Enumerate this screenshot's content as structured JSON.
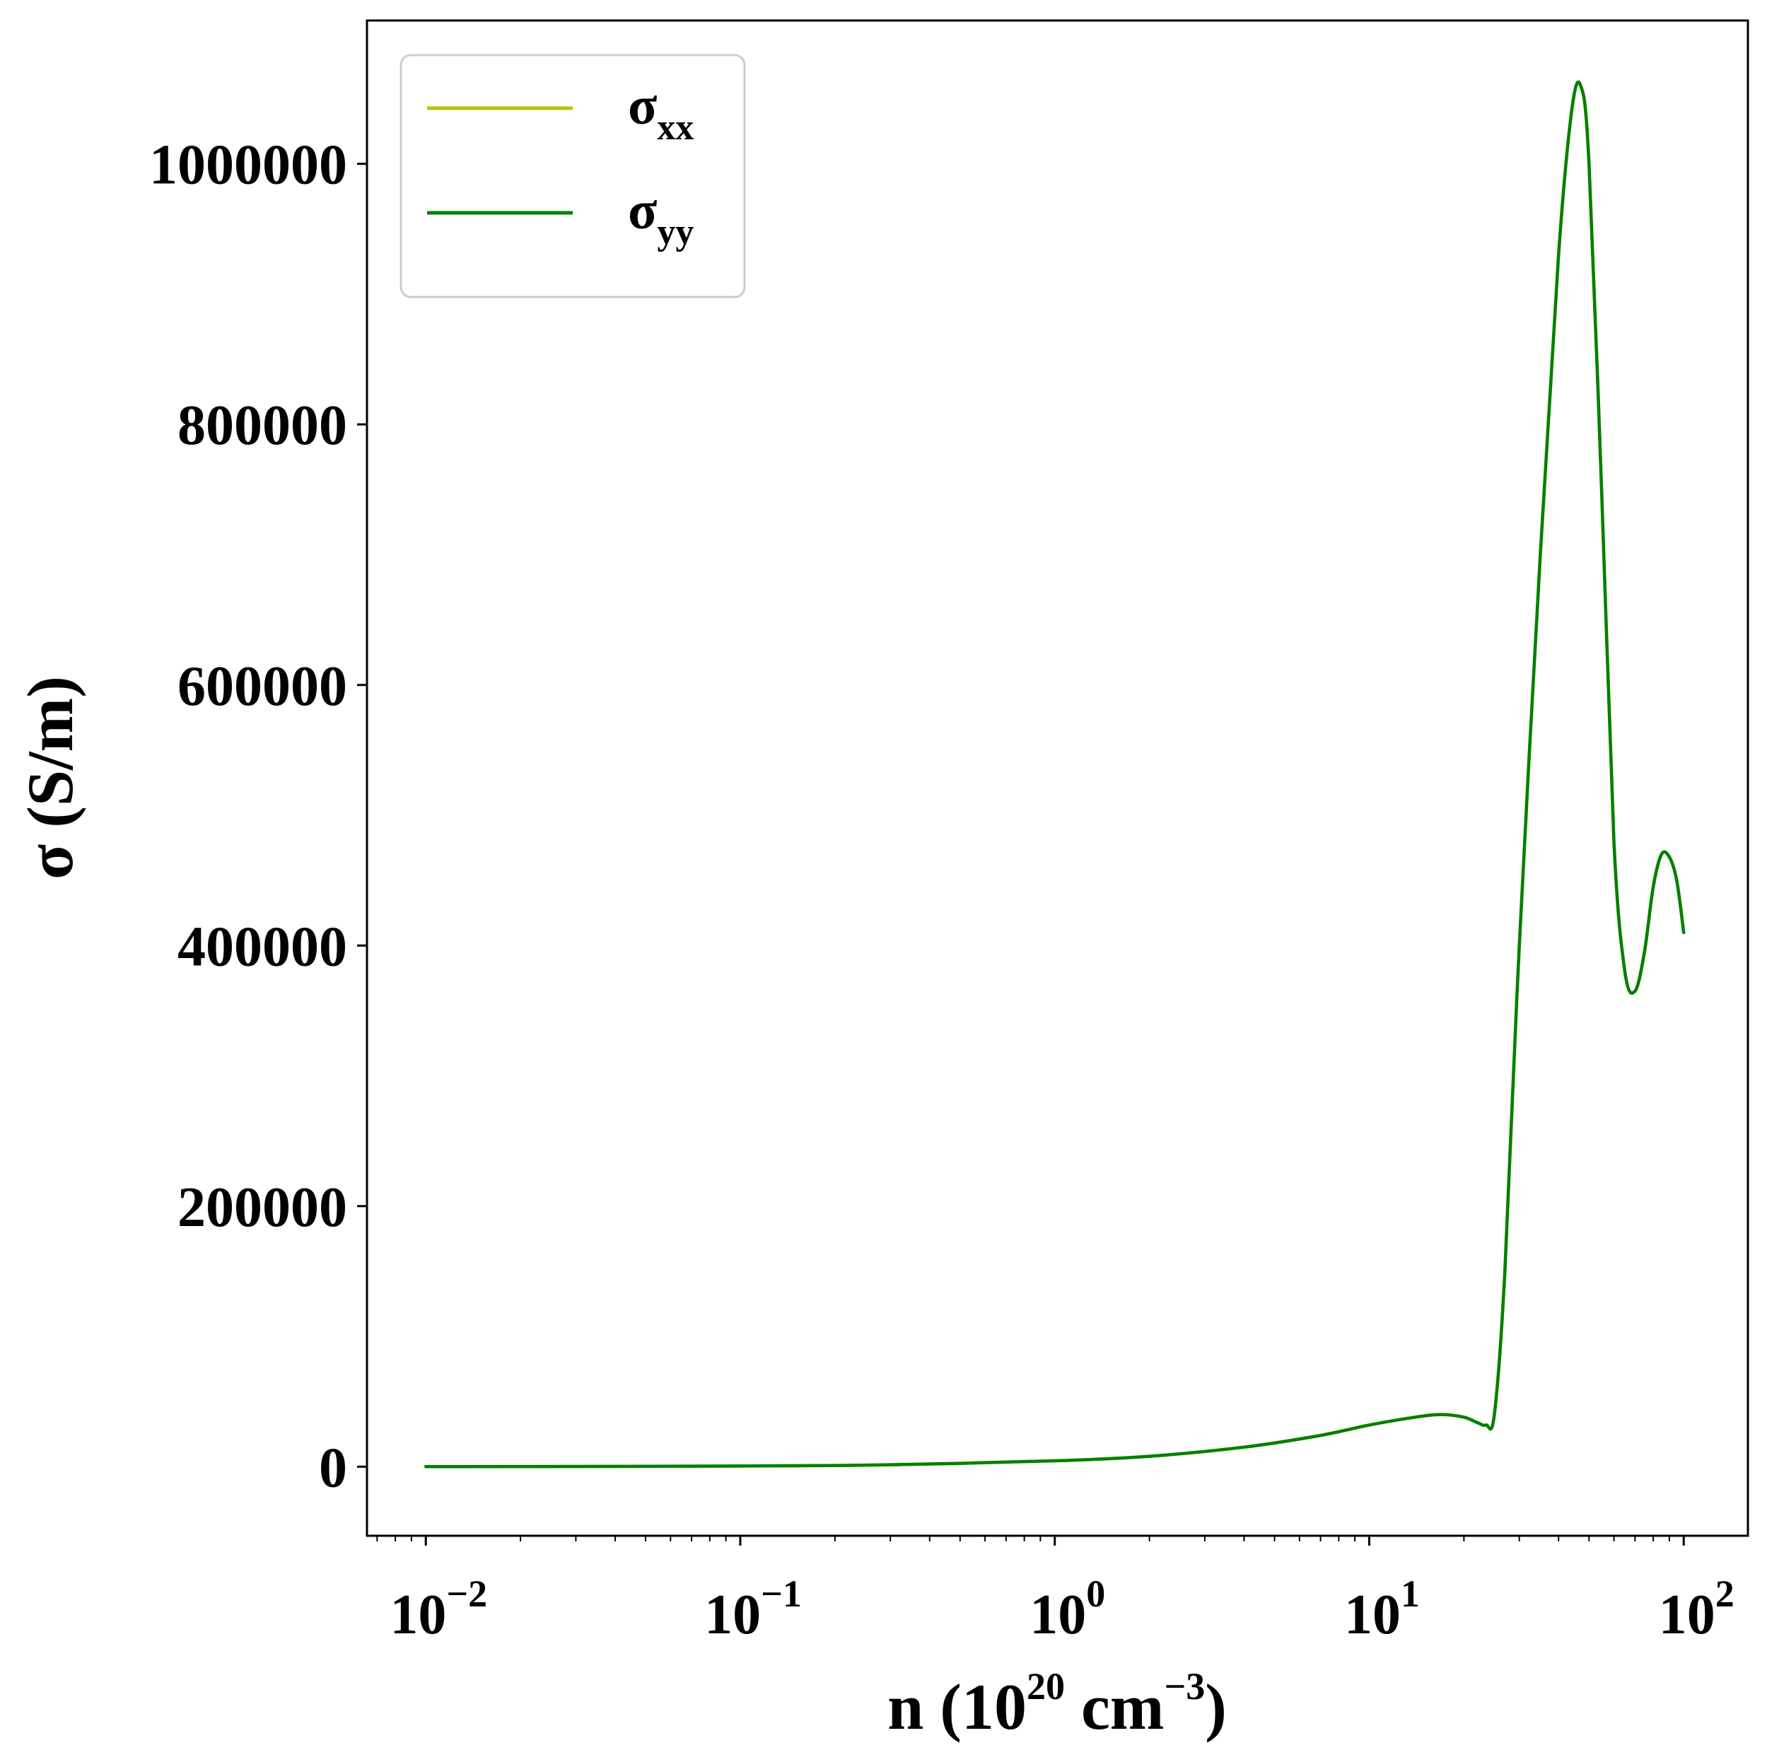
{
  "chart_data": {
    "type": "line",
    "xlabel": {
      "base": "n (10",
      "exp1": "20",
      "mid": " cm",
      "exp2": "−3",
      "end": ")"
    },
    "ylabel": "σ (S/m)",
    "xscale": "log",
    "xlim": [
      0.0065,
      160
    ],
    "ylim": [
      -53000,
      1110000
    ],
    "x_ticks": [
      {
        "value": 0.01,
        "base": "10",
        "exp": "−2"
      },
      {
        "value": 0.1,
        "base": "10",
        "exp": "−1"
      },
      {
        "value": 1,
        "base": "10",
        "exp": "0"
      },
      {
        "value": 10,
        "base": "10",
        "exp": "1"
      },
      {
        "value": 100,
        "base": "10",
        "exp": "2"
      }
    ],
    "y_ticks": [
      {
        "value": 0,
        "label": "0"
      },
      {
        "value": 200000,
        "label": "200000"
      },
      {
        "value": 400000,
        "label": "400000"
      },
      {
        "value": 600000,
        "label": "600000"
      },
      {
        "value": 800000,
        "label": "800000"
      },
      {
        "value": 1000000,
        "label": "1000000"
      }
    ],
    "grid": false,
    "legend_position": "top-left",
    "series": [
      {
        "name": "σ",
        "sub": "xx",
        "color": "#bfbf00",
        "x": [
          0.01,
          0.1,
          0.3,
          1,
          2,
          4,
          7,
          10,
          14,
          17,
          20,
          22,
          23.5,
          25,
          27,
          30,
          35,
          40,
          44,
          47,
          50,
          55,
          60,
          65,
          70,
          75,
          80,
          85,
          90,
          95,
          100
        ],
        "y": [
          0,
          500,
          1500,
          4500,
          8000,
          15000,
          24000,
          32000,
          38000,
          40000,
          38000,
          34000,
          32000,
          40000,
          150000,
          400000,
          700000,
          930000,
          1040000,
          1060000,
          1000000,
          740000,
          480000,
          380000,
          365000,
          395000,
          445000,
          470000,
          468000,
          450000,
          410000
        ]
      },
      {
        "name": "σ",
        "sub": "yy",
        "color": "#008000",
        "x": [
          0.01,
          0.1,
          0.3,
          1,
          2,
          4,
          7,
          10,
          14,
          17,
          20,
          22,
          23.5,
          25,
          27,
          30,
          35,
          40,
          44,
          47,
          50,
          55,
          60,
          65,
          70,
          75,
          80,
          85,
          90,
          95,
          100
        ],
        "y": [
          0,
          500,
          1500,
          4500,
          8000,
          15000,
          24000,
          32000,
          38000,
          40000,
          38000,
          34000,
          32000,
          40000,
          150000,
          400000,
          700000,
          930000,
          1040000,
          1060000,
          1000000,
          740000,
          480000,
          380000,
          365000,
          395000,
          445000,
          470000,
          468000,
          450000,
          410000
        ]
      }
    ]
  }
}
